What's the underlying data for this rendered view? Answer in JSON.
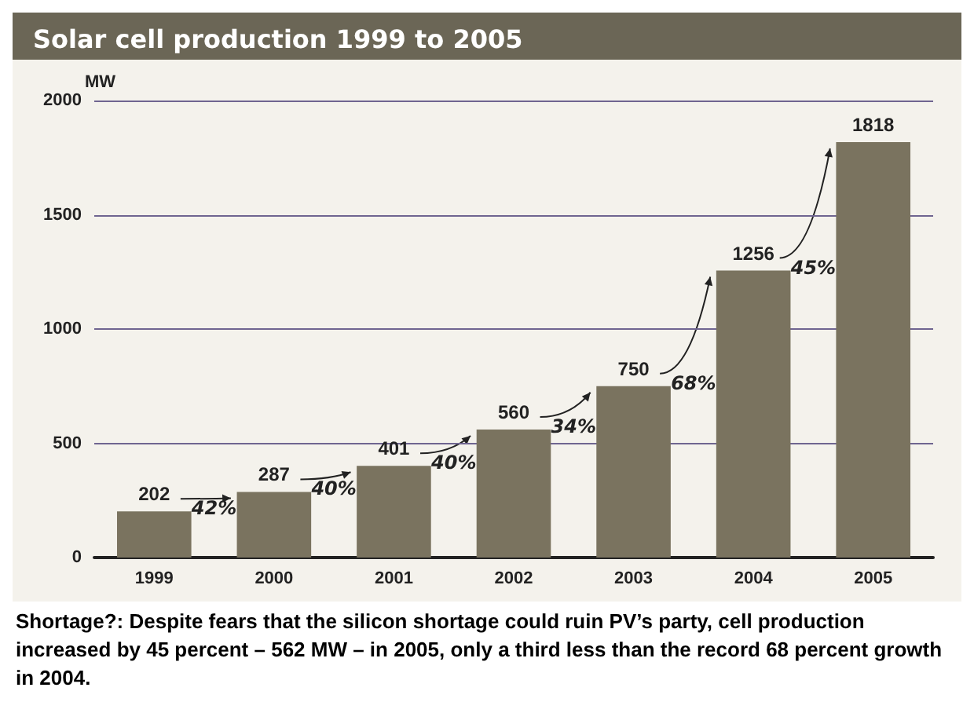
{
  "chart_data": {
    "type": "bar",
    "title": "Solar cell production 1999 to 2005",
    "ylabel": "MW",
    "categories": [
      "1999",
      "2000",
      "2001",
      "2002",
      "2003",
      "2004",
      "2005"
    ],
    "values": [
      202,
      287,
      401,
      560,
      750,
      1256,
      1818
    ],
    "color": "#7a735f",
    "ylim": [
      0,
      2000
    ],
    "yticks": [
      0,
      500,
      1000,
      1500,
      2000
    ],
    "grid": "y",
    "data_labels": true,
    "annotations": [
      {
        "text": "42%",
        "x": "1999",
        "y": 202
      },
      {
        "text": "40%",
        "x": "2000",
        "y": 287
      },
      {
        "text": "40%",
        "x": "2001",
        "y": 401
      },
      {
        "text": "34%",
        "x": "2002",
        "y": 560
      },
      {
        "text": "68%",
        "x": "2003",
        "y": 750
      },
      {
        "text": "45%",
        "x": "2004",
        "y": 1256
      },
      "Shortage?: Despite fears that the silicon shortage could ruin PV’s party, cell production increased by 45 percent – 562 MW – in 2005, only a third less than the record 68 percent growth in 2004."
    ]
  }
}
